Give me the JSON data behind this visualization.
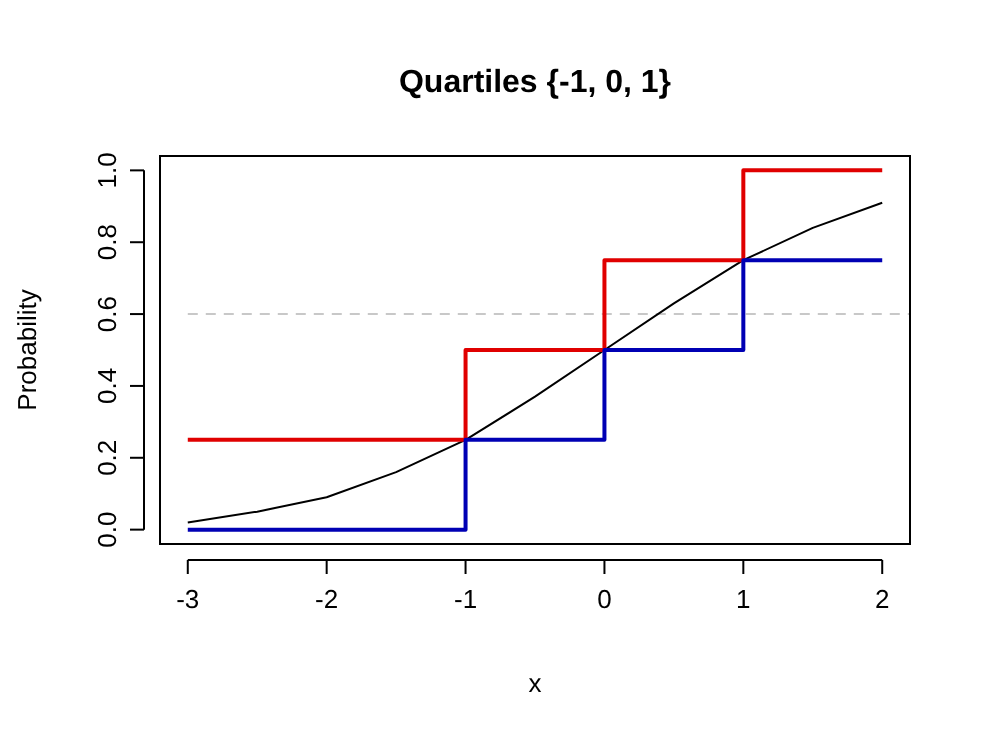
{
  "chart_data": {
    "type": "line",
    "title": "Quartiles {-1, 0, 1}",
    "xlabel": "x",
    "ylabel": "Probability",
    "xlim": [
      -3.2,
      2.2
    ],
    "ylim": [
      -0.04,
      1.04
    ],
    "xticks": [
      -3,
      -2,
      -1,
      0,
      1,
      2
    ],
    "yticks": [
      {
        "value": 0,
        "label": "0.0"
      },
      0.2,
      0.4,
      0.6,
      0.8,
      {
        "value": 1,
        "label": "1.0"
      }
    ],
    "ref_lines": [
      {
        "axis": "y",
        "value": 0.6,
        "color": "#c8c8c8",
        "line_style": "dashed"
      }
    ],
    "series": [
      {
        "color": "#000000",
        "x": [
          -3,
          -2.5,
          -2,
          -1.5,
          -1,
          -0.5,
          0,
          0.5,
          1,
          1.5,
          2
        ],
        "values": [
          0.02,
          0.05,
          0.09,
          0.16,
          0.25,
          0.37,
          0.5,
          0.63,
          0.75,
          0.84,
          0.91
        ]
      },
      {
        "type": "step",
        "color": "#e00000",
        "x": [
          -3,
          -1,
          0,
          1,
          2
        ],
        "values": [
          0.25,
          0.5,
          0.75,
          1,
          1
        ]
      },
      {
        "type": "step",
        "color": "#0000b4",
        "x": [
          -3,
          -1,
          0,
          1,
          2
        ],
        "values": [
          0,
          0.25,
          0.5,
          0.75,
          0.75
        ]
      }
    ]
  }
}
